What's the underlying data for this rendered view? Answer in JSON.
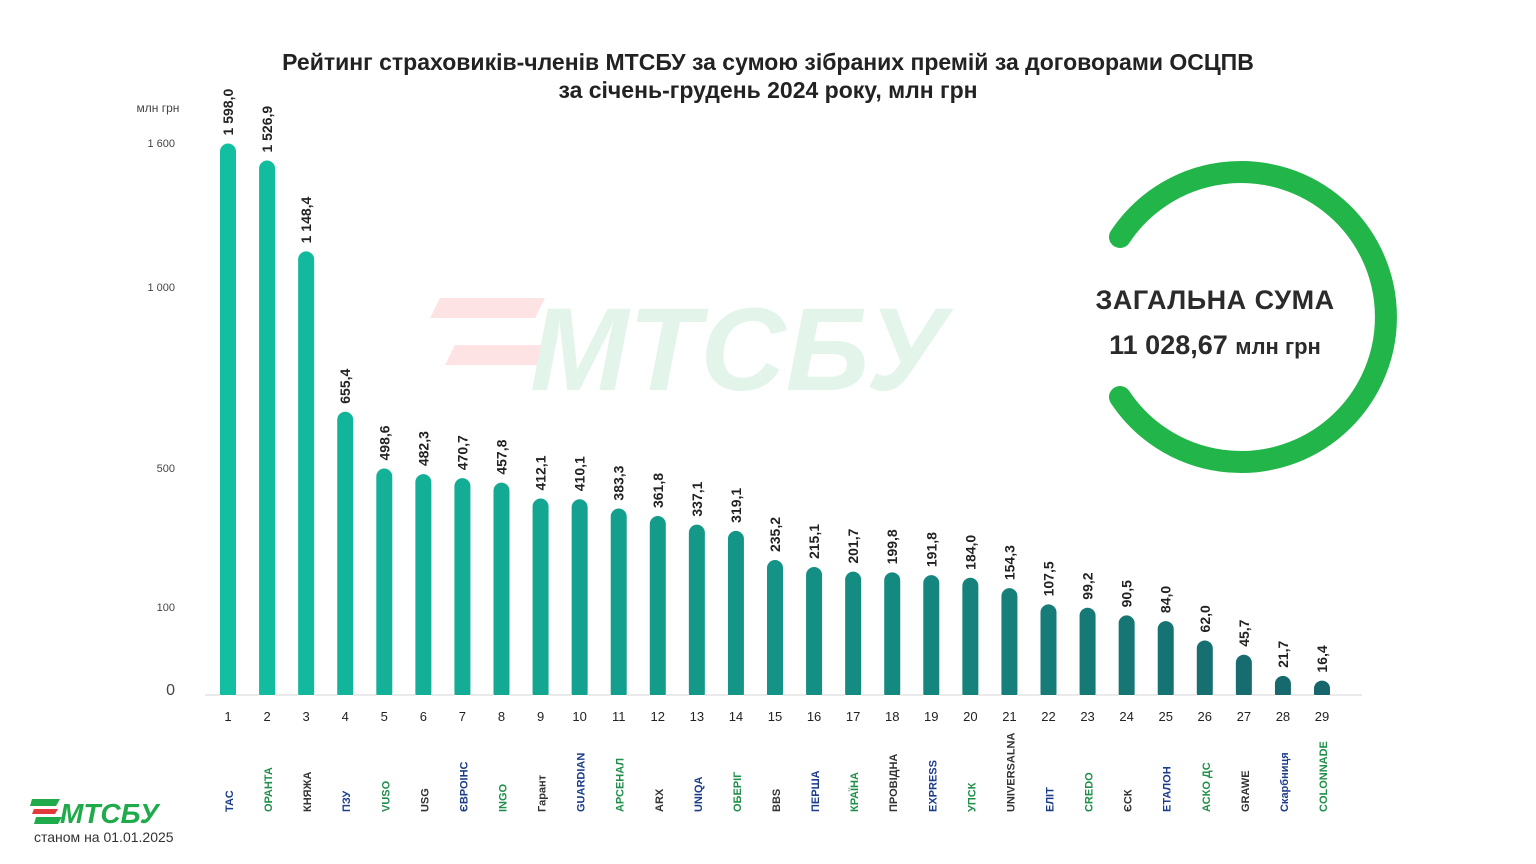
{
  "title_line1": "Рейтинг страховиків-членів МТСБУ за сумою зібраних премій за договорами ОСЦПВ",
  "title_line2": "за січень-грудень 2024 року, млн грн",
  "total": {
    "label": "ЗАГАЛЬНА СУМА",
    "value": "11  028,67",
    "unit": "млн грн"
  },
  "footer": {
    "brand": "МТСБУ",
    "date": "станом на 01.01.2025"
  },
  "watermark": "МТСБУ",
  "colors": {
    "bar_start": "#12bfa0",
    "bar_end": "#16666b",
    "ring": "#22b54a",
    "brand_green": "#1faa4b",
    "brand_red": "#e23a3a"
  },
  "chart_data": {
    "type": "bar",
    "ylabel": "млн грн",
    "yticks": [
      0,
      100,
      500,
      1000,
      1600
    ],
    "ytick_labels": [
      "0",
      "100",
      "500",
      "1 000",
      "1 600"
    ],
    "categories": [
      "1",
      "2",
      "3",
      "4",
      "5",
      "6",
      "7",
      "8",
      "9",
      "10",
      "11",
      "12",
      "13",
      "14",
      "15",
      "16",
      "17",
      "18",
      "19",
      "20",
      "21",
      "22",
      "23",
      "24",
      "25",
      "26",
      "27",
      "28",
      "29"
    ],
    "values": [
      1598.0,
      1526.9,
      1148.4,
      655.4,
      498.6,
      482.3,
      470.7,
      457.8,
      412.1,
      410.1,
      383.3,
      361.8,
      337.1,
      319.1,
      235.2,
      215.1,
      201.7,
      199.8,
      191.8,
      184.0,
      154.3,
      107.5,
      99.2,
      90.5,
      84.0,
      62.0,
      45.7,
      21.7,
      16.4
    ],
    "value_labels": [
      "1 598,0",
      "1 526,9",
      "1 148,4",
      "655,4",
      "498,6",
      "482,3",
      "470,7",
      "457,8",
      "412,1",
      "410,1",
      "383,3",
      "361,8",
      "337,1",
      "319,1",
      "235,2",
      "215,1",
      "201,7",
      "199,8",
      "191,8",
      "184,0",
      "154,3",
      "107,5",
      "99,2",
      "90,5",
      "84,0",
      "62,0",
      "45,7",
      "21,7",
      "16,4"
    ],
    "companies": [
      "ТАС",
      "ОРАНТА",
      "КНЯЖА",
      "ПЗУ",
      "VUSO",
      "USG",
      "ЄВРОІНС",
      "INGO",
      "Гарант",
      "GUARDIAN",
      "АРСЕНАЛ",
      "ARX",
      "UNIQA",
      "ОБЕРІГ",
      "BBS",
      "ПЕРША",
      "КРАЇНА",
      "ПРОВІДНА",
      "EXPRESS",
      "УПСК",
      "UNIVERSALNA",
      "ЕЛІТ",
      "CREDO",
      "ЄСК",
      "ЕТАЛОН",
      "АСКО ДС",
      "GRAWE",
      "Скарбниця",
      "COLONNADE"
    ]
  }
}
